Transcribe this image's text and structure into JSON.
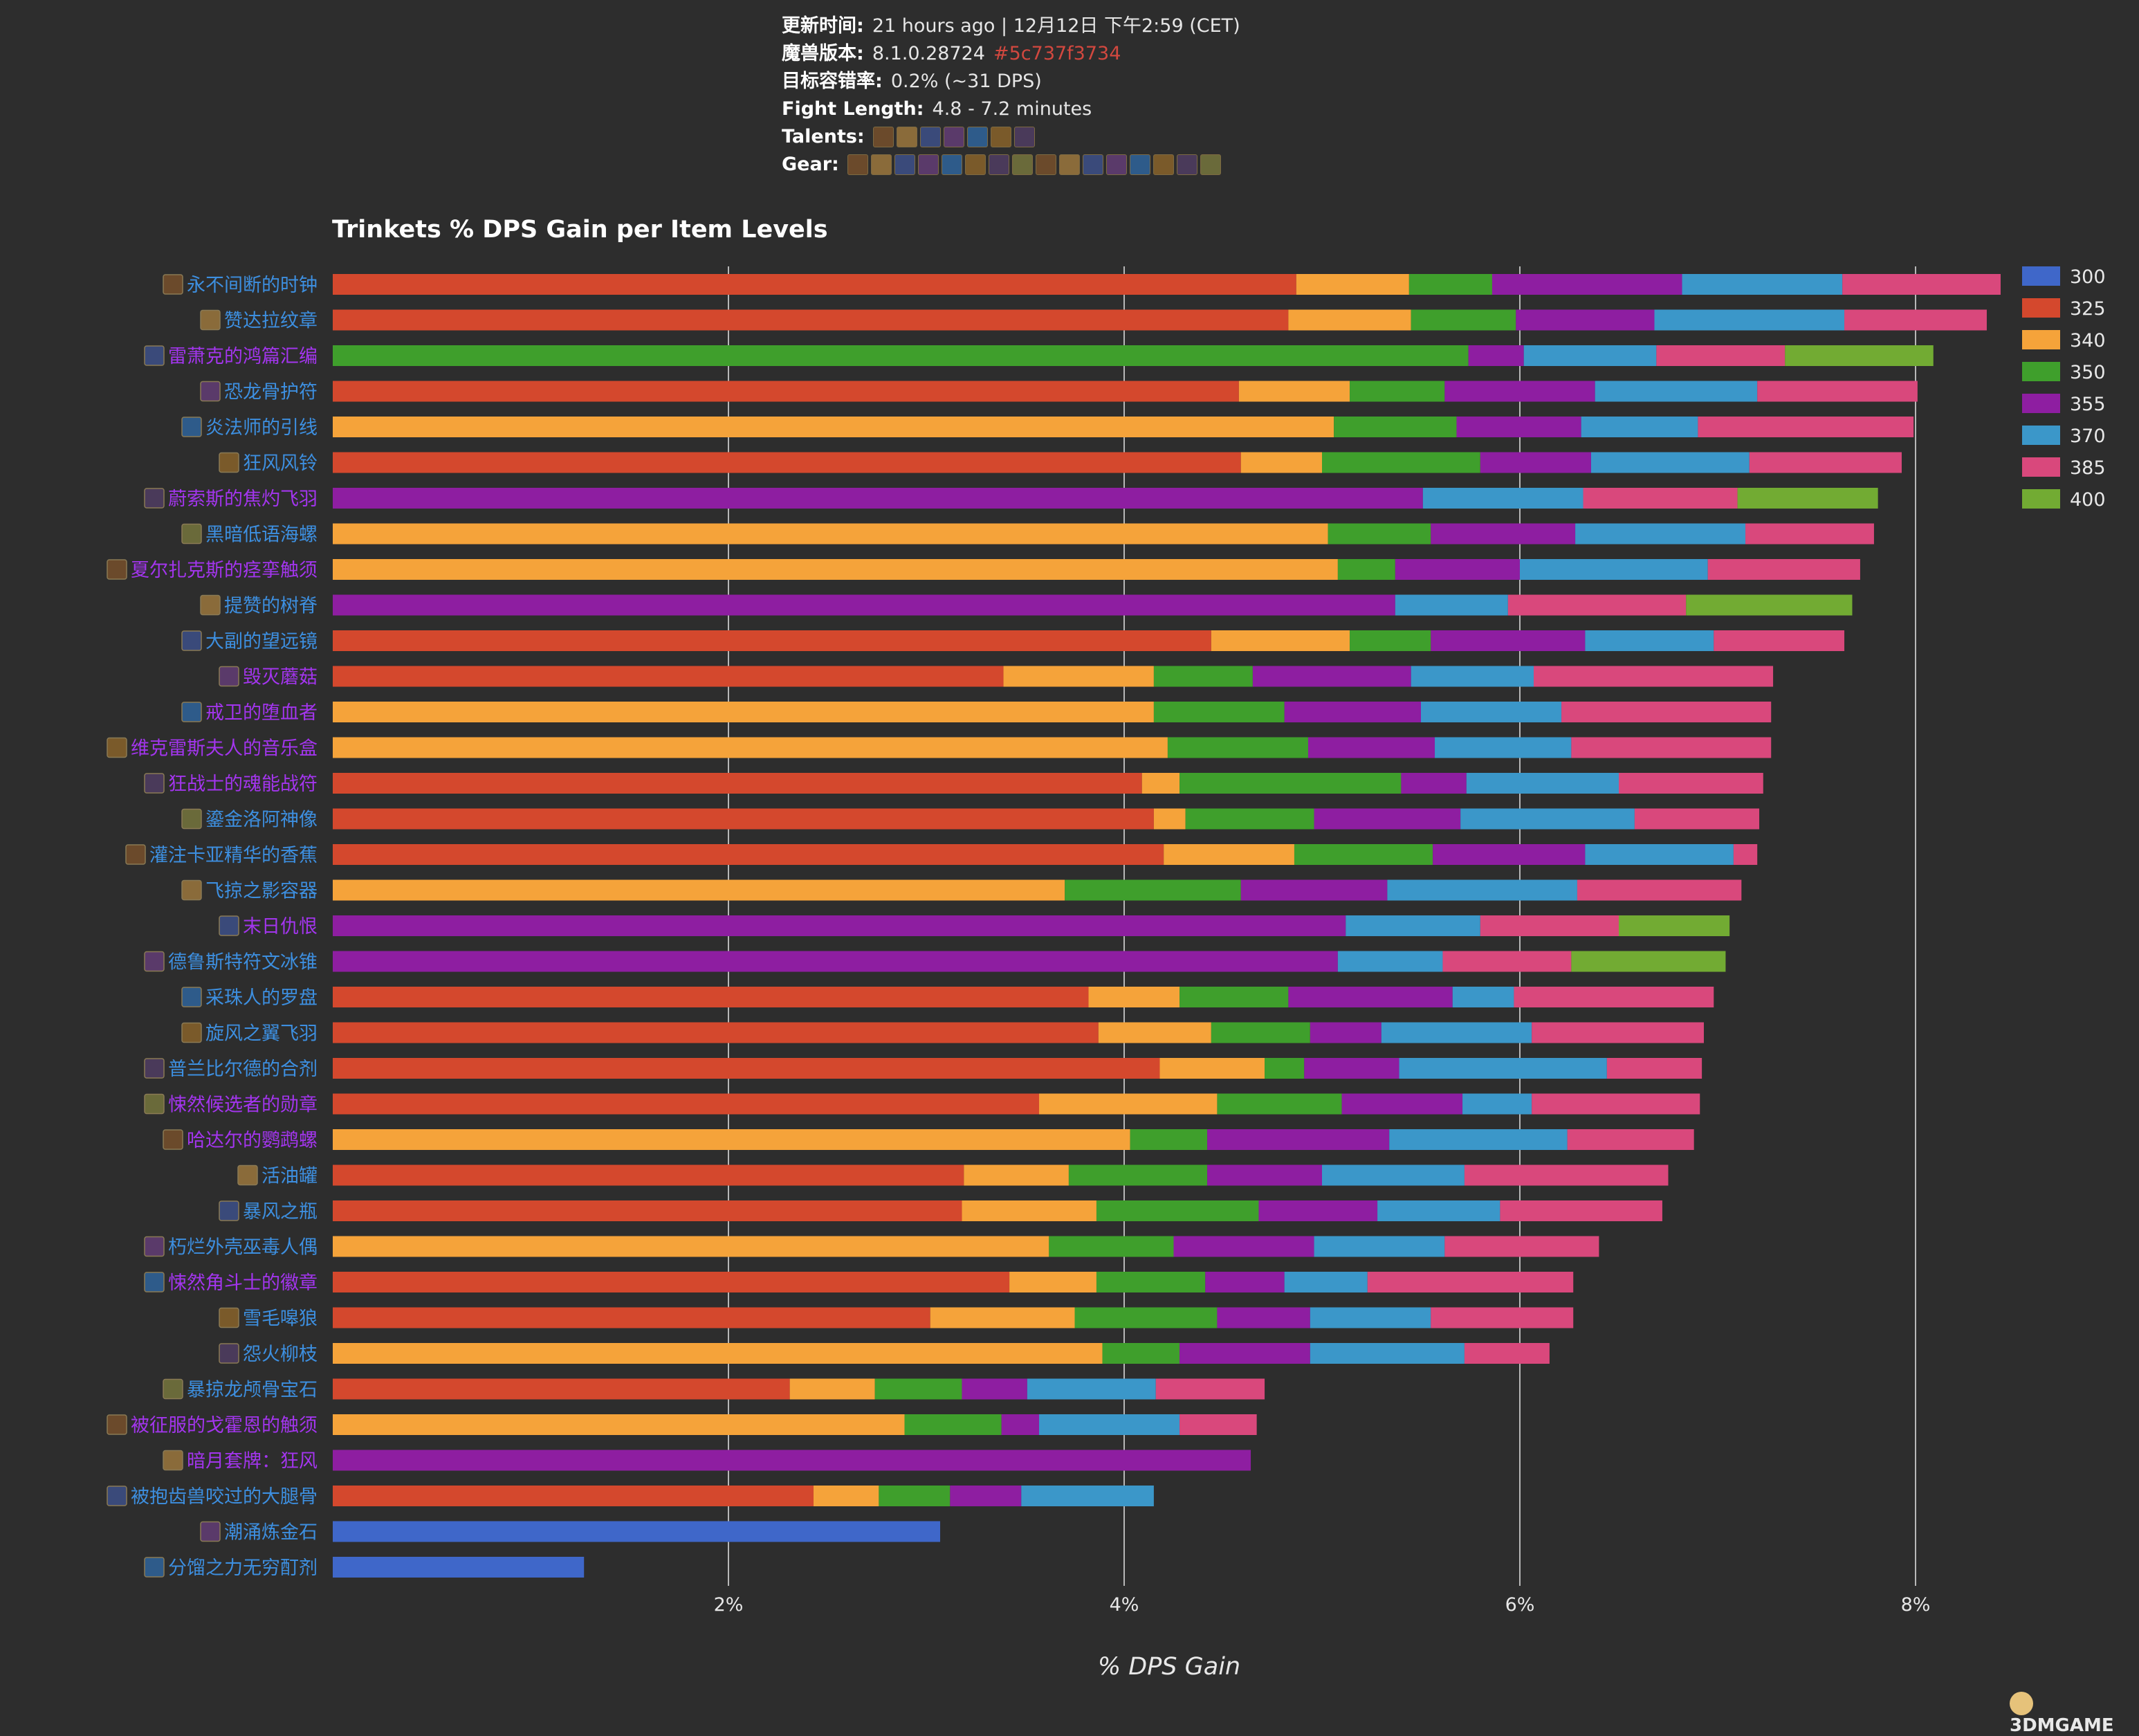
{
  "header": {
    "updated": {
      "label": "更新时间:",
      "value": "21 hours ago | 12月12日 下午2:59 (CET)"
    },
    "version": {
      "label": "魔兽版本:",
      "value": "8.1.0.28724",
      "hash": "#5c737f3734"
    },
    "tolerance": {
      "label": "目标容错率:",
      "value": "0.2% (~31 DPS)"
    },
    "fight": {
      "label": "Fight Length:",
      "value": "4.8 - 7.2 minutes"
    },
    "talents": {
      "label": "Talents:",
      "icons": [
        "talent-icon-1",
        "talent-icon-2",
        "talent-icon-3",
        "talent-icon-4",
        "talent-icon-5",
        "talent-icon-6",
        "talent-icon-7"
      ]
    },
    "gear": {
      "label": "Gear:",
      "icons": [
        "gear-icon-1",
        "gear-icon-2",
        "gear-icon-3",
        "gear-icon-4",
        "gear-icon-5",
        "gear-icon-6",
        "gear-icon-7",
        "gear-icon-8",
        "gear-icon-9",
        "gear-icon-10",
        "gear-icon-11",
        "gear-icon-12",
        "gear-icon-13",
        "gear-icon-14",
        "gear-icon-15",
        "gear-icon-16"
      ]
    }
  },
  "watermark": "3DMGAME",
  "colors": {
    "background": "#2d2d2d",
    "grid": "#b8b8b8",
    "label_epic": "#a335ee",
    "label_rare": "#3d8fe0"
  },
  "chart_data": {
    "type": "bar",
    "stacked": true,
    "orientation": "horizontal",
    "title": "Trinkets % DPS Gain per Item Levels",
    "xlabel": "% DPS Gain",
    "xlim": [
      0,
      8.5
    ],
    "xticks": [
      "2%",
      "4%",
      "6%",
      "8%"
    ],
    "xtick_values": [
      2,
      4,
      6,
      8
    ],
    "legend_position": "right",
    "series": [
      {
        "name": "300",
        "color": "#3f67c9"
      },
      {
        "name": "325",
        "color": "#d4482d"
      },
      {
        "name": "340",
        "color": "#f5a33a"
      },
      {
        "name": "350",
        "color": "#3f9f2c"
      },
      {
        "name": "355",
        "color": "#8e1ea1"
      },
      {
        "name": "370",
        "color": "#3b97c9"
      },
      {
        "name": "385",
        "color": "#d9487c"
      },
      {
        "name": "400",
        "color": "#72ab33"
      }
    ],
    "categories": [
      {
        "name": "永不间断的时钟",
        "quality": "rare",
        "base": "325",
        "ends": [
          4.87,
          5.44,
          5.86,
          6.82,
          7.63,
          8.43
        ]
      },
      {
        "name": "赞达拉纹章",
        "quality": "rare",
        "base": "325",
        "ends": [
          4.83,
          5.45,
          5.98,
          6.68,
          7.64,
          8.36
        ]
      },
      {
        "name": "雷萧克的鸿篇汇编",
        "quality": "epic",
        "base": "350",
        "ends": [
          5.74,
          6.02,
          6.69,
          7.34,
          8.09
        ]
      },
      {
        "name": "恐龙骨护符",
        "quality": "rare",
        "base": "325",
        "ends": [
          4.58,
          5.14,
          5.62,
          6.38,
          7.2,
          8.01
        ]
      },
      {
        "name": "炎法师的引线",
        "quality": "rare",
        "base": "340",
        "ends": [
          5.06,
          5.68,
          6.31,
          6.9,
          7.99
        ]
      },
      {
        "name": "狂风风铃",
        "quality": "rare",
        "base": "325",
        "ends": [
          4.59,
          5.0,
          5.8,
          6.36,
          7.16,
          7.93
        ]
      },
      {
        "name": "蔚索斯的焦灼飞羽",
        "quality": "epic",
        "base": "355",
        "ends": [
          5.51,
          6.32,
          7.1,
          7.81
        ]
      },
      {
        "name": "黑暗低语海螺",
        "quality": "rare",
        "base": "340",
        "ends": [
          5.03,
          5.55,
          6.28,
          7.14,
          7.79
        ]
      },
      {
        "name": "夏尔扎克斯的痉挛触须",
        "quality": "epic",
        "base": "340",
        "ends": [
          5.08,
          5.37,
          6.0,
          6.95,
          7.72
        ]
      },
      {
        "name": "提赞的树脊",
        "quality": "rare",
        "base": "355",
        "ends": [
          5.37,
          5.94,
          6.84,
          7.68
        ]
      },
      {
        "name": "大副的望远镜",
        "quality": "rare",
        "base": "325",
        "ends": [
          4.44,
          5.14,
          5.55,
          6.33,
          6.98,
          7.64
        ]
      },
      {
        "name": "毁灭蘑菇",
        "quality": "epic",
        "base": "325",
        "ends": [
          3.39,
          4.15,
          4.65,
          5.45,
          6.07,
          7.28
        ]
      },
      {
        "name": "戒卫的堕血者",
        "quality": "epic",
        "base": "340",
        "ends": [
          4.15,
          4.81,
          5.5,
          6.21,
          7.27
        ]
      },
      {
        "name": "维克雷斯夫人的音乐盒",
        "quality": "epic",
        "base": "340",
        "ends": [
          4.22,
          4.93,
          5.57,
          6.26,
          7.27
        ]
      },
      {
        "name": "狂战士的魂能战符",
        "quality": "epic",
        "base": "325",
        "ends": [
          4.09,
          4.28,
          5.4,
          5.73,
          6.5,
          7.23
        ]
      },
      {
        "name": "鎏金洛阿神像",
        "quality": "rare",
        "base": "325",
        "ends": [
          4.15,
          4.31,
          4.96,
          5.7,
          6.58,
          7.21
        ]
      },
      {
        "name": "灌注卡亚精华的香蕉",
        "quality": "rare",
        "base": "325",
        "ends": [
          4.2,
          4.86,
          5.56,
          6.33,
          7.08,
          7.2
        ]
      },
      {
        "name": "飞掠之影容器",
        "quality": "rare",
        "base": "340",
        "ends": [
          3.7,
          4.59,
          5.33,
          6.29,
          7.12
        ]
      },
      {
        "name": "末日仇恨",
        "quality": "epic",
        "base": "355",
        "ends": [
          5.12,
          5.8,
          6.5,
          7.06
        ]
      },
      {
        "name": "德鲁斯特符文冰锥",
        "quality": "rare",
        "base": "355",
        "ends": [
          5.08,
          5.61,
          6.26,
          7.04
        ]
      },
      {
        "name": "采珠人的罗盘",
        "quality": "rare",
        "base": "325",
        "ends": [
          3.82,
          4.28,
          4.83,
          5.66,
          5.97,
          6.98
        ]
      },
      {
        "name": "旋风之翼飞羽",
        "quality": "rare",
        "base": "325",
        "ends": [
          3.87,
          4.44,
          4.94,
          5.3,
          6.06,
          6.93
        ]
      },
      {
        "name": "普兰比尔德的合剂",
        "quality": "rare",
        "base": "325",
        "ends": [
          4.18,
          4.71,
          4.91,
          5.39,
          6.44,
          6.92
        ]
      },
      {
        "name": "悚然候选者的勋章",
        "quality": "epic",
        "base": "325",
        "ends": [
          3.57,
          4.47,
          5.1,
          5.71,
          6.06,
          6.91
        ]
      },
      {
        "name": "哈达尔的鹦鹉螺",
        "quality": "epic",
        "base": "340",
        "ends": [
          4.03,
          4.42,
          5.34,
          6.24,
          6.88
        ]
      },
      {
        "name": "活油罐",
        "quality": "rare",
        "base": "325",
        "ends": [
          3.19,
          3.72,
          4.42,
          5.0,
          5.72,
          6.75
        ]
      },
      {
        "name": "暴风之瓶",
        "quality": "rare",
        "base": "325",
        "ends": [
          3.18,
          3.86,
          4.68,
          5.28,
          5.9,
          6.72
        ]
      },
      {
        "name": "朽烂外壳巫毒人偶",
        "quality": "rare",
        "base": "340",
        "ends": [
          3.62,
          4.25,
          4.96,
          5.62,
          6.4
        ]
      },
      {
        "name": "悚然角斗士的徽章",
        "quality": "epic",
        "base": "325",
        "ends": [
          3.42,
          3.86,
          4.41,
          4.81,
          5.23,
          6.27
        ]
      },
      {
        "name": "雪毛嗥狼",
        "quality": "rare",
        "base": "325",
        "ends": [
          3.02,
          3.75,
          4.47,
          4.94,
          5.55,
          6.27
        ]
      },
      {
        "name": "怨火柳枝",
        "quality": "rare",
        "base": "340",
        "ends": [
          3.89,
          4.28,
          4.94,
          5.72,
          6.15
        ]
      },
      {
        "name": "暴掠龙颅骨宝石",
        "quality": "rare",
        "base": "325",
        "ends": [
          2.31,
          2.74,
          3.18,
          3.51,
          4.16,
          4.71
        ]
      },
      {
        "name": "被征服的戈霍恩的触须",
        "quality": "epic",
        "base": "340",
        "ends": [
          2.89,
          3.38,
          3.57,
          4.28,
          4.67
        ]
      },
      {
        "name": "暗月套牌：狂风",
        "quality": "epic",
        "base": "355",
        "ends": [
          4.64
        ]
      },
      {
        "name": "被抱齿兽咬过的大腿骨",
        "quality": "rare",
        "base": "325",
        "ends": [
          2.43,
          2.76,
          3.12,
          3.48,
          4.15
        ]
      },
      {
        "name": "潮涌炼金石",
        "quality": "rare",
        "base": "300",
        "ends": [
          3.07
        ]
      },
      {
        "name": "分馏之力无穷酊剂",
        "quality": "rare",
        "base": "300",
        "ends": [
          1.27
        ]
      }
    ]
  }
}
